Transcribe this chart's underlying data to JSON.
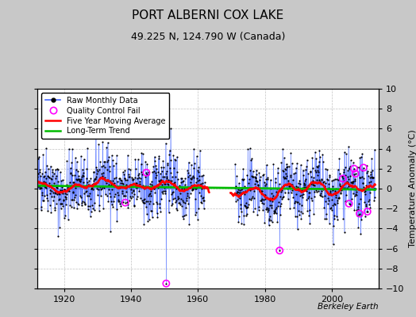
{
  "title": "PORT ALBERNI COX LAKE",
  "subtitle": "49.225 N, 124.790 W (Canada)",
  "ylabel": "Temperature Anomaly (°C)",
  "attribution": "Berkeley Earth",
  "ylim": [
    -10,
    10
  ],
  "xlim": [
    1912,
    2014
  ],
  "yticks": [
    -10,
    -8,
    -6,
    -4,
    -2,
    0,
    2,
    4,
    6,
    8,
    10
  ],
  "xticks": [
    1920,
    1940,
    1960,
    1980,
    2000
  ],
  "bg_color": "#c8c8c8",
  "plot_bg_color": "#ffffff",
  "raw_color": "#4466ff",
  "dot_color": "#000000",
  "ma_color": "#ff0000",
  "trend_color": "#00bb00",
  "qc_color": "#ff00ff",
  "grid_color": "#bbbbbb",
  "seed": 42,
  "years_start": 1912,
  "years_end": 2013,
  "gap_start": 1962,
  "gap_end": 1971
}
